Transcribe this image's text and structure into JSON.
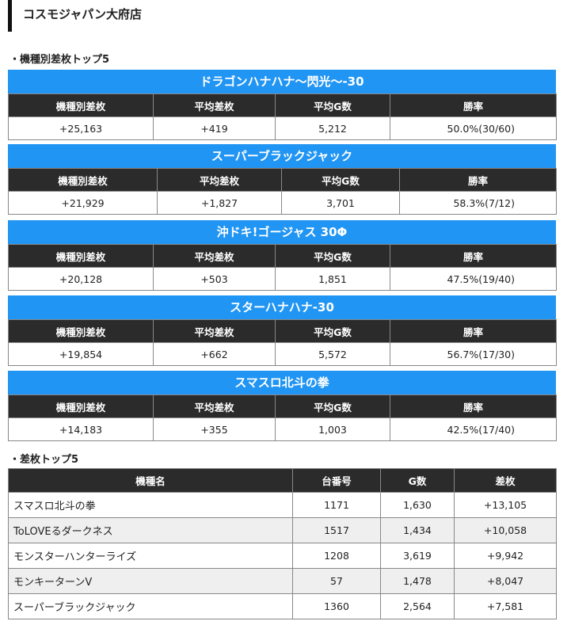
{
  "store_title": "コスモジャパン大府店",
  "section_machine_top5": "・機種別差枚トップ5",
  "machine_headers": [
    "機種別差枚",
    "平均差枚",
    "平均G数",
    "勝率"
  ],
  "machines": [
    {
      "name": "ドラゴンハナハナ〜閃光〜-30",
      "total": "+25,163",
      "avg_diff": "+419",
      "avg_games": "5,212",
      "win_rate": "50.0%(30/60)"
    },
    {
      "name": "スーパーブラックジャック",
      "total": "+21,929",
      "avg_diff": "+1,827",
      "avg_games": "3,701",
      "win_rate": "58.3%(7/12)"
    },
    {
      "name": "沖ドキ!ゴージャス 30Φ",
      "total": "+20,128",
      "avg_diff": "+503",
      "avg_games": "1,851",
      "win_rate": "47.5%(19/40)"
    },
    {
      "name": "スターハナハナ-30",
      "total": "+19,854",
      "avg_diff": "+662",
      "avg_games": "5,572",
      "win_rate": "56.7%(17/30)"
    },
    {
      "name": "スマスロ北斗の拳",
      "total": "+14,183",
      "avg_diff": "+355",
      "avg_games": "1,003",
      "win_rate": "42.5%(17/40)"
    }
  ],
  "section_diff_top5": "・差枚トップ5",
  "ranking_headers": [
    "機種名",
    "台番号",
    "G数",
    "差枚"
  ],
  "ranking": [
    {
      "name": "スマスロ北斗の拳",
      "unit": "1171",
      "games": "1,630",
      "diff": "+13,105"
    },
    {
      "name": "ToLOVEるダークネス",
      "unit": "1517",
      "games": "1,434",
      "diff": "+10,058"
    },
    {
      "name": "モンスターハンターライズ",
      "unit": "1208",
      "games": "3,619",
      "diff": "+9,942"
    },
    {
      "name": "モンキーターンV",
      "unit": "57",
      "games": "1,478",
      "diff": "+8,047"
    },
    {
      "name": "スーパーブラックジャック",
      "unit": "1360",
      "games": "2,564",
      "diff": "+7,581"
    }
  ]
}
